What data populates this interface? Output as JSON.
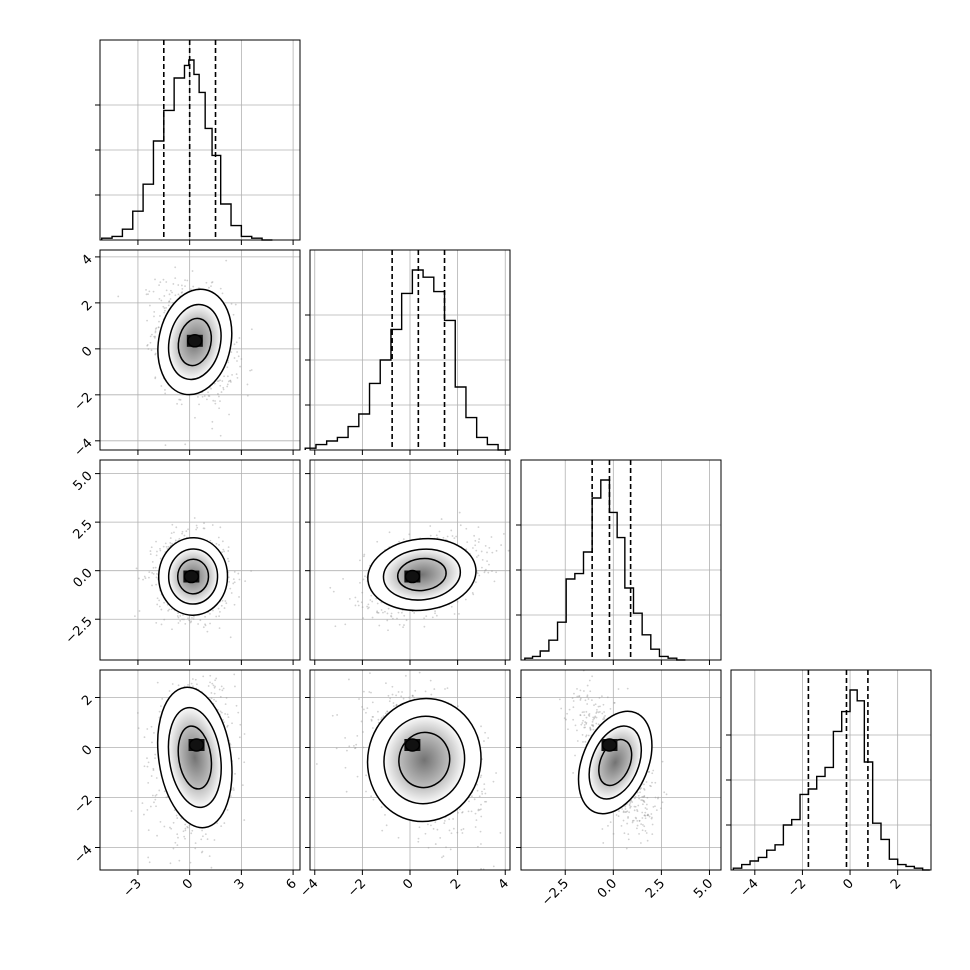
{
  "chart_data": {
    "type": "corner",
    "variables": 4,
    "grid": true,
    "colors": {
      "line": "#000000",
      "grid": "#b0b0b0",
      "scatter": "#9a9a9a"
    },
    "histograms": [
      {
        "var": 0,
        "edges": [
          -5.1,
          -4.5,
          -3.9,
          -3.3,
          -2.7,
          -2.1,
          -1.5,
          -0.9,
          -0.3,
          -0.05,
          0.25,
          0.55,
          0.9,
          1.3,
          1.8,
          2.4,
          3.0,
          3.6,
          4.2,
          4.8
        ],
        "counts": [
          0.01,
          0.02,
          0.06,
          0.16,
          0.31,
          0.55,
          0.72,
          0.9,
          0.97,
          1.0,
          0.92,
          0.82,
          0.62,
          0.47,
          0.2,
          0.08,
          0.02,
          0.01,
          0.0
        ],
        "quantiles": [
          -1.5,
          0.0,
          1.5
        ],
        "xlim": [
          -5.2,
          6.4
        ]
      },
      {
        "var": 1,
        "edges": [
          -4.4,
          -3.95,
          -3.5,
          -3.05,
          -2.6,
          -2.15,
          -1.7,
          -1.25,
          -0.8,
          -0.35,
          0.1,
          0.55,
          1.0,
          1.45,
          1.9,
          2.35,
          2.8,
          3.25,
          3.7,
          4.15
        ],
        "counts": [
          0.01,
          0.03,
          0.05,
          0.07,
          0.13,
          0.2,
          0.37,
          0.5,
          0.67,
          0.87,
          1.0,
          0.96,
          0.88,
          0.72,
          0.35,
          0.18,
          0.07,
          0.03,
          0.0
        ],
        "quantiles": [
          -0.75,
          0.35,
          1.45
        ],
        "xlim": [
          -4.2,
          4.2
        ]
      },
      {
        "var": 2,
        "edges": [
          -4.6,
          -4.2,
          -3.8,
          -3.35,
          -2.9,
          -2.45,
          -2.0,
          -1.55,
          -1.1,
          -0.65,
          -0.2,
          0.2,
          0.6,
          1.05,
          1.5,
          1.95,
          2.4,
          2.85,
          3.3,
          3.75
        ],
        "counts": [
          0.01,
          0.02,
          0.05,
          0.11,
          0.21,
          0.45,
          0.48,
          0.6,
          0.9,
          1.0,
          0.82,
          0.68,
          0.4,
          0.26,
          0.14,
          0.06,
          0.02,
          0.01,
          0.0
        ],
        "quantiles": [
          -1.1,
          -0.2,
          0.9
        ],
        "xlim": [
          -4.8,
          5.6
        ]
      },
      {
        "var": 3,
        "edges": [
          -4.9,
          -4.55,
          -4.2,
          -3.85,
          -3.5,
          -3.15,
          -2.8,
          -2.45,
          -2.1,
          -1.75,
          -1.4,
          -1.05,
          -0.7,
          -0.35,
          0.0,
          0.3,
          0.6,
          0.95,
          1.3,
          1.65,
          2.0,
          2.35,
          2.7,
          3.05,
          3.35
        ],
        "counts": [
          0.01,
          0.03,
          0.05,
          0.07,
          0.11,
          0.14,
          0.25,
          0.28,
          0.42,
          0.45,
          0.52,
          0.57,
          0.77,
          0.88,
          1.0,
          0.94,
          0.6,
          0.26,
          0.17,
          0.06,
          0.03,
          0.02,
          0.01,
          0.0
        ],
        "quantiles": [
          -1.75,
          -0.15,
          0.75
        ],
        "xlim": [
          -5.0,
          3.4
        ]
      }
    ],
    "contour_panels": [
      {
        "x": 0,
        "y": 1,
        "center": [
          0.3,
          0.3
        ],
        "sigma": [
          1.1,
          1.25
        ],
        "rho": -0.28,
        "core": [
          0.3,
          0.35
        ]
      },
      {
        "x": 0,
        "y": 2,
        "center": [
          0.2,
          -0.3
        ],
        "sigma": [
          1.05,
          1.05
        ],
        "rho": -0.05,
        "core": [
          0.1,
          -0.3
        ]
      },
      {
        "x": 1,
        "y": 2,
        "center": [
          0.5,
          -0.2
        ],
        "sigma": [
          1.2,
          1.0
        ],
        "rho": 0.35,
        "core": [
          0.1,
          -0.3
        ]
      },
      {
        "x": 0,
        "y": 3,
        "center": [
          0.3,
          -0.4
        ],
        "sigma": [
          1.1,
          1.5
        ],
        "rho": 0.15,
        "core": [
          0.4,
          0.1
        ]
      },
      {
        "x": 1,
        "y": 3,
        "center": [
          0.6,
          -0.5
        ],
        "sigma": [
          1.25,
          1.35
        ],
        "rho": -0.35,
        "core": [
          0.1,
          0.1
        ]
      },
      {
        "x": 2,
        "y": 3,
        "center": [
          0.1,
          -0.6
        ],
        "sigma": [
          0.9,
          1.25
        ],
        "rho": -0.55,
        "core": [
          -0.2,
          0.1
        ]
      }
    ],
    "x_ticks": [
      {
        "values": [
          -3,
          0,
          3,
          6
        ],
        "labels": [
          "−3",
          "0",
          "3",
          "6"
        ]
      },
      {
        "values": [
          -4,
          -2,
          0,
          2,
          4
        ],
        "labels": [
          "−4",
          "−2",
          "0",
          "2",
          "4"
        ]
      },
      {
        "values": [
          -2.5,
          0.0,
          2.5,
          5.0
        ],
        "labels": [
          "−2.5",
          "0.0",
          "2.5",
          "5.0"
        ]
      },
      {
        "values": [
          -4,
          -2,
          0,
          2
        ],
        "labels": [
          "−4",
          "−2",
          "0",
          "2"
        ]
      }
    ],
    "y_ticks": [
      null,
      {
        "values": [
          -4,
          -2,
          0,
          2,
          4
        ],
        "labels": [
          "−4",
          "−2",
          "0",
          "2",
          "4"
        ]
      },
      {
        "values": [
          -2.5,
          0.0,
          2.5,
          5.0
        ],
        "labels": [
          "−2.5",
          "0.0",
          "2.5",
          "5.0"
        ]
      },
      {
        "values": [
          -4,
          -2,
          0,
          2
        ],
        "labels": [
          "−4",
          "−2",
          "0",
          "2"
        ]
      }
    ],
    "ylims": [
      null,
      [
        -4.4,
        4.3
      ],
      [
        -4.6,
        5.7
      ],
      [
        -4.9,
        3.1
      ]
    ]
  }
}
